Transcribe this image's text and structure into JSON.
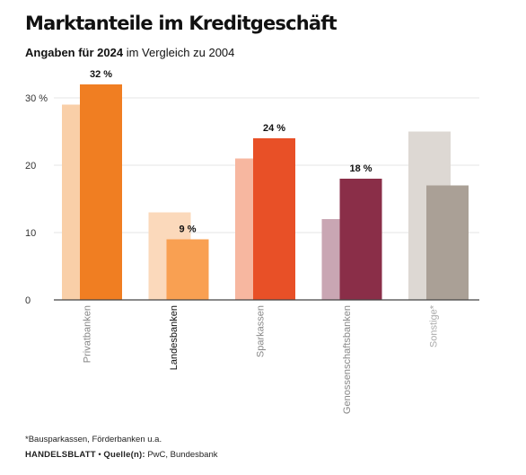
{
  "title": "Marktanteile im Kreditgeschäft",
  "subtitle": {
    "bold": "Angaben für 2024",
    "rest": " im Vergleich zu 2004"
  },
  "footnote": "*Bausparkassen, Förderbanken u.a.",
  "source": {
    "publisher": "HANDELSBLATT",
    "separator": " • ",
    "label": "Quelle(n):",
    "text": " PwC, Bundesbank"
  },
  "chart_data": {
    "type": "bar",
    "categories": [
      "Privatbanken",
      "Landesbanken",
      "Sparkassen",
      "Genossenschaftsbanken",
      "Sonstige*"
    ],
    "series": [
      {
        "values": [
          29,
          13,
          21,
          12,
          25
        ]
      },
      {
        "values": [
          32,
          9,
          24,
          18,
          17
        ]
      }
    ],
    "data_labels": [
      "32 %",
      "9 %",
      "24 %",
      "18 %",
      ""
    ],
    "y_ticks": [
      0,
      10,
      20,
      30
    ],
    "y_tick_labels": [
      "0",
      "10",
      "20",
      "30 %"
    ],
    "ylim": [
      0,
      34
    ],
    "grid": true,
    "colors_2004": [
      "#f9cfa8",
      "#fbd9bb",
      "#f7b7a0",
      "#c9a6b3",
      "#ddd8d3"
    ],
    "colors_2024": [
      "#f07e22",
      "#f9a052",
      "#e85027",
      "#8a2e48",
      "#aaa096"
    ],
    "category_label_colors": [
      "#888888",
      "#111111",
      "#888888",
      "#888888",
      "#aaaaaa"
    ]
  }
}
